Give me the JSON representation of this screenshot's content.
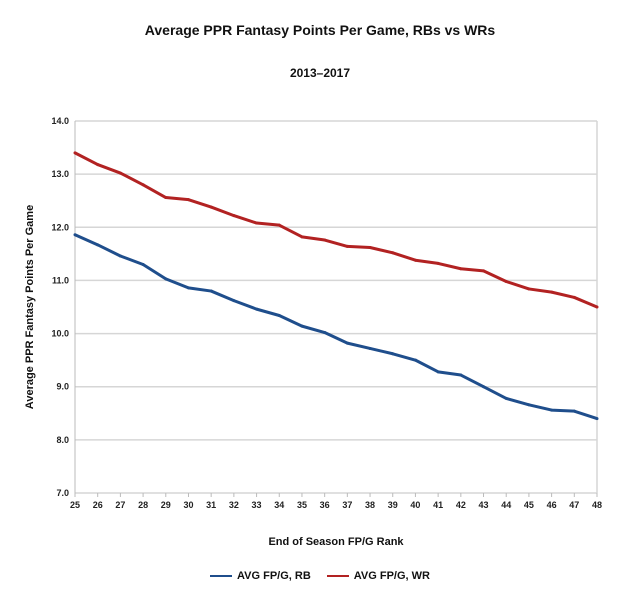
{
  "chart_data": {
    "type": "line",
    "title": "Average PPR Fantasy Points Per Game, RBs vs WRs",
    "subtitle": "2013–2017",
    "xlabel": "End of Season FP/G Rank",
    "ylabel": "Average PPR Fantasy Points Per Game",
    "x": [
      25,
      26,
      27,
      28,
      29,
      30,
      31,
      32,
      33,
      34,
      35,
      36,
      37,
      38,
      39,
      40,
      41,
      42,
      43,
      44,
      45,
      46,
      47,
      48
    ],
    "ylim": [
      7.0,
      14.0
    ],
    "yticks": [
      "7.0",
      "8.0",
      "9.0",
      "10.0",
      "11.0",
      "12.0",
      "13.0",
      "14.0"
    ],
    "grid": true,
    "legend_position": "bottom",
    "series": [
      {
        "name": "AVG FP/G, RB",
        "color": "#1f4e8c",
        "values": [
          11.86,
          11.67,
          11.46,
          11.3,
          11.03,
          10.86,
          10.8,
          10.62,
          10.46,
          10.34,
          10.14,
          10.02,
          9.82,
          9.72,
          9.62,
          9.5,
          9.28,
          9.22,
          9.0,
          8.78,
          8.66,
          8.56,
          8.54,
          8.4
        ]
      },
      {
        "name": "AVG FP/G, WR",
        "color": "#b22222",
        "values": [
          13.4,
          13.18,
          13.02,
          12.8,
          12.56,
          12.52,
          12.38,
          12.22,
          12.08,
          12.04,
          11.82,
          11.76,
          11.64,
          11.62,
          11.52,
          11.38,
          11.32,
          11.22,
          11.18,
          10.98,
          10.84,
          10.78,
          10.68,
          10.5
        ]
      }
    ]
  }
}
